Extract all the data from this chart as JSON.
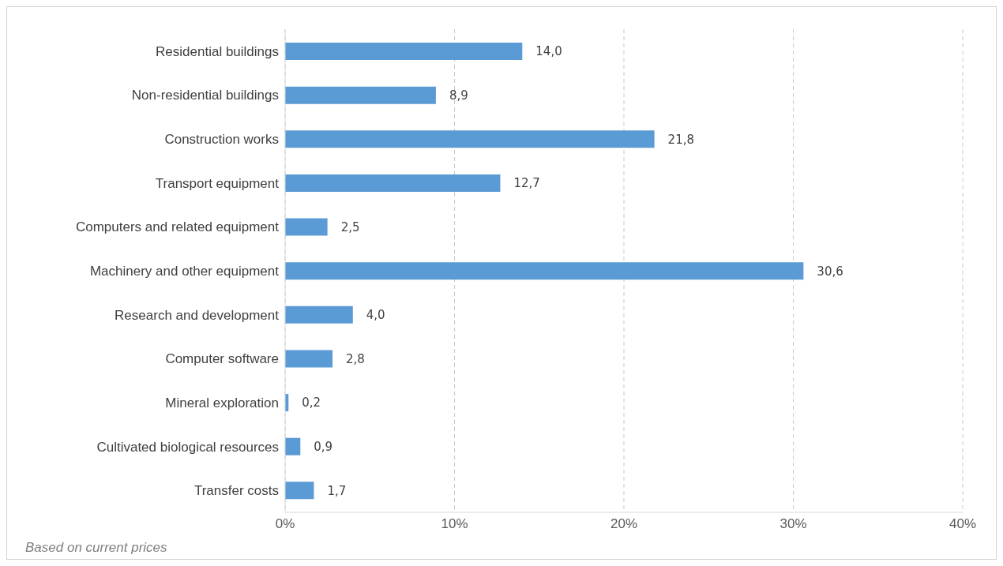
{
  "chart_data": {
    "type": "bar",
    "orientation": "horizontal",
    "categories": [
      "Residential buildings",
      "Non-residential buildings",
      "Construction works",
      "Transport equipment",
      "Computers and related equipment",
      "Machinery and other equipment",
      "Research and development",
      "Computer software",
      "Mineral exploration",
      "Cultivated biological resources",
      "Transfer costs"
    ],
    "values": [
      14.0,
      8.9,
      21.8,
      12.7,
      2.5,
      30.6,
      4.0,
      2.8,
      0.2,
      0.9,
      1.7
    ],
    "value_labels": [
      "14,0",
      "8,9",
      "21,8",
      "12,7",
      "2,5",
      "30,6",
      "4,0",
      "2,8",
      "0,2",
      "0,9",
      "1,7"
    ],
    "color": "#5b9bd5",
    "xlim": [
      0,
      40
    ],
    "xticks": [
      {
        "value": 0,
        "label": "0%"
      },
      {
        "value": 10,
        "label": "10%"
      },
      {
        "value": 20,
        "label": "20%"
      },
      {
        "value": 30,
        "label": "30%"
      },
      {
        "value": 40,
        "label": "40%"
      }
    ],
    "grid": "x",
    "annotations": [
      "Based on current prices"
    ]
  }
}
